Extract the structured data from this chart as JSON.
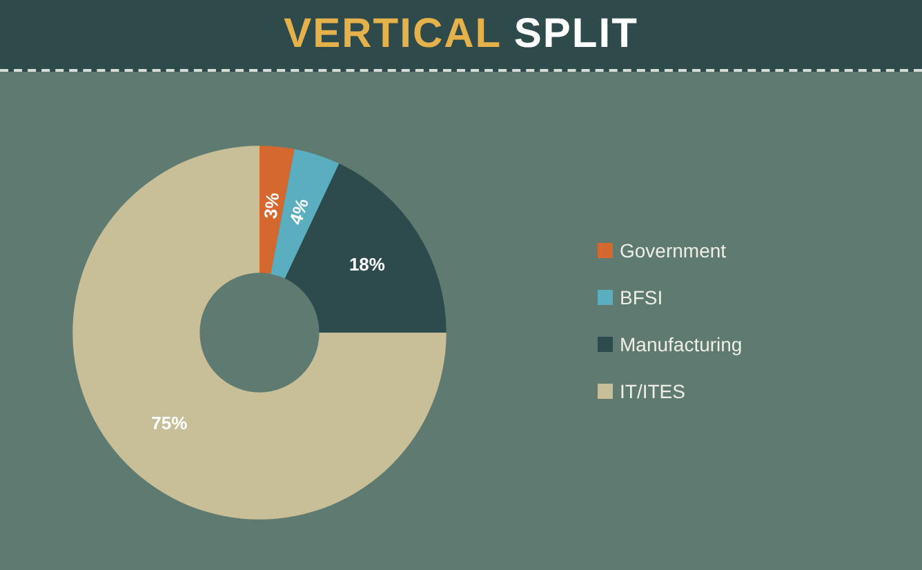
{
  "chart_data": {
    "type": "donut",
    "title": "VERTICAL SPLIT",
    "categories": [
      "Government",
      "BFSI",
      "Manufacturing",
      "IT/ITES"
    ],
    "values": [
      3,
      4,
      18,
      75
    ],
    "colors": [
      "#d4682e",
      "#5aaec0",
      "#2d4b4c",
      "#c8bf98"
    ],
    "value_labels": [
      "3%",
      "4%",
      "18%",
      "75%"
    ],
    "legend": "right"
  }
}
